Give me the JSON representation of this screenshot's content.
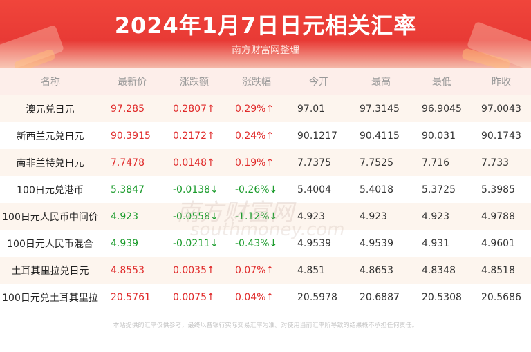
{
  "header": {
    "title": "2024年1月7日日元相关汇率",
    "subtitle": "南方财富网整理"
  },
  "columns": [
    "名称",
    "最新价",
    "涨跌额",
    "涨跌幅",
    "今开",
    "最高",
    "最低",
    "昨收"
  ],
  "rows": [
    {
      "name": "澳元兑日元",
      "latest": "97.285",
      "change": "0.2807↑",
      "pct": "0.29%↑",
      "open": "97.01",
      "high": "97.3145",
      "low": "96.9045",
      "prev": "97.0043",
      "dir": "up"
    },
    {
      "name": "新西兰元兑日元",
      "latest": "90.3915",
      "change": "0.2172↑",
      "pct": "0.24%↑",
      "open": "90.1217",
      "high": "90.4115",
      "low": "90.031",
      "prev": "90.1743",
      "dir": "up"
    },
    {
      "name": "南非兰特兑日元",
      "latest": "7.7478",
      "change": "0.0148↑",
      "pct": "0.19%↑",
      "open": "7.7375",
      "high": "7.7525",
      "low": "7.716",
      "prev": "7.733",
      "dir": "up"
    },
    {
      "name": "100日元兑港币",
      "latest": "5.3847",
      "change": "-0.0138↓",
      "pct": "-0.26%↓",
      "open": "5.4004",
      "high": "5.4018",
      "low": "5.3725",
      "prev": "5.3985",
      "dir": "down"
    },
    {
      "name": "100日元人民币中间价",
      "latest": "4.923",
      "change": "-0.0558↓",
      "pct": "-1.12%↓",
      "open": "4.923",
      "high": "4.923",
      "low": "4.923",
      "prev": "4.9788",
      "dir": "down"
    },
    {
      "name": "100日元人民币混合",
      "latest": "4.939",
      "change": "-0.0211↓",
      "pct": "-0.43%↓",
      "open": "4.9539",
      "high": "4.9539",
      "low": "4.931",
      "prev": "4.9601",
      "dir": "down"
    },
    {
      "name": "土耳其里拉兑日元",
      "latest": "4.8553",
      "change": "0.0035↑",
      "pct": "0.07%↑",
      "open": "4.851",
      "high": "4.8653",
      "low": "4.8348",
      "prev": "4.8518",
      "dir": "up"
    },
    {
      "name": "100日元兑土耳其里拉",
      "latest": "20.5761",
      "change": "0.0075↑",
      "pct": "0.04%↑",
      "open": "20.5978",
      "high": "20.6887",
      "low": "20.5308",
      "prev": "20.5686",
      "dir": "up"
    }
  ],
  "footnote": "本站提供的汇率仅供参考，最终以各银行实际交易汇率为准。对使用当前汇率所导致的结果概不承担任何责任。",
  "watermark": {
    "cn": "南方财富网",
    "en": "southmoney.com"
  },
  "colors": {
    "up": "#e02a2a",
    "down": "#1a9b2b",
    "header": "#e83a35"
  }
}
